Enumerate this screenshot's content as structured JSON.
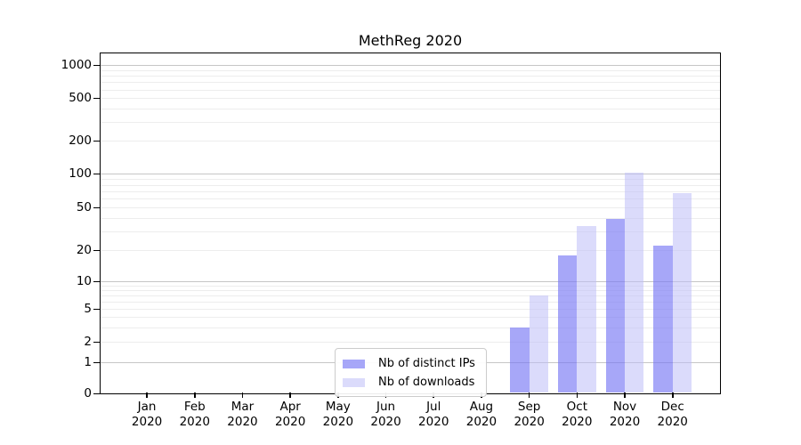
{
  "chart_data": {
    "type": "bar",
    "title": "MethReg 2020",
    "xlabel": "",
    "ylabel": "",
    "categories": [
      "Jan 2020",
      "Feb 2020",
      "Mar 2020",
      "Apr 2020",
      "May 2020",
      "Jun 2020",
      "Jul 2020",
      "Aug 2020",
      "Sep 2020",
      "Oct 2020",
      "Nov 2020",
      "Dec 2020"
    ],
    "series": [
      {
        "name": "Nb of distinct IPs",
        "color": "rgba(120,120,245,0.65)",
        "values": [
          0,
          0,
          0,
          0,
          0,
          0,
          0,
          0,
          3,
          18,
          39,
          22
        ]
      },
      {
        "name": "Nb of downloads",
        "color": "rgba(190,190,248,0.55)",
        "values": [
          0,
          0,
          0,
          0,
          0,
          0,
          0,
          0,
          7,
          34,
          102,
          67
        ]
      }
    ],
    "yscale": "symlog",
    "ylim": [
      0,
      1300
    ],
    "yticks": [
      0,
      1,
      2,
      5,
      10,
      20,
      50,
      100,
      200,
      500,
      1000
    ],
    "major_gridlines": [
      1,
      10,
      100,
      1000
    ],
    "minor_gridlines": [
      2,
      3,
      4,
      5,
      6,
      7,
      8,
      9,
      20,
      30,
      40,
      60,
      70,
      80,
      90,
      200,
      300,
      400,
      600,
      700,
      800,
      900,
      500,
      50
    ],
    "grid": true,
    "legend_position": "lower center"
  },
  "style": {
    "major_grid_color": "#c6c6c6",
    "minor_grid_color": "#ededed",
    "axis_color": "#000000",
    "background": "#ffffff"
  }
}
